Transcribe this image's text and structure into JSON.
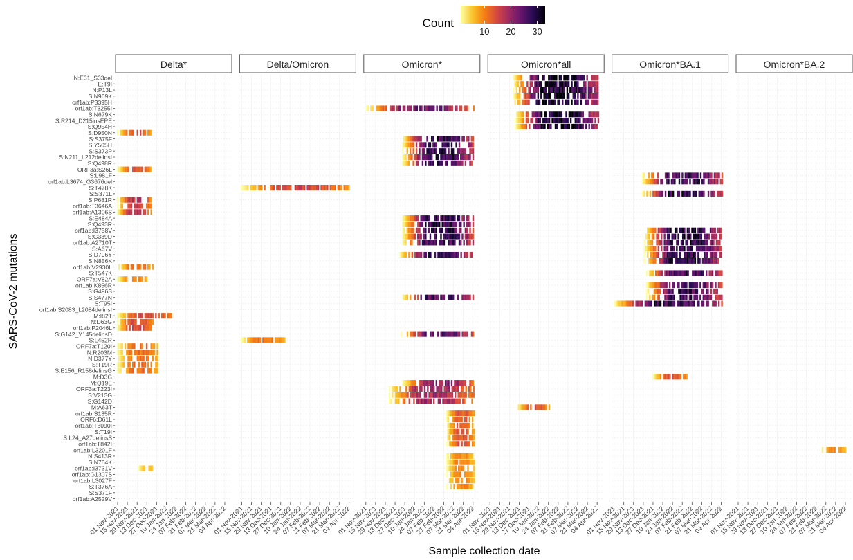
{
  "legend": {
    "title": "Count",
    "ticks": [
      10,
      20,
      30
    ],
    "range": [
      1,
      33
    ],
    "colors": [
      "#fcffa4",
      "#fac228",
      "#f57d15",
      "#d44842",
      "#9f2a63",
      "#65156e",
      "#280b53",
      "#000004"
    ]
  },
  "chart_data": {
    "type": "heatmap",
    "title": "",
    "xlabel": "Sample collection date",
    "ylabel": "SARS-CoV-2 mutations",
    "facets": [
      "Delta*",
      "Delta/Omicron",
      "Omicron*",
      "Omicron*all",
      "Omicron*BA.1",
      "Omicron*BA.2"
    ],
    "x_ticks": [
      "01 Nov-2021",
      "15 Nov-2021",
      "29 Nov-2021",
      "13 Dec-2021",
      "27 Dec-2021",
      "10 Jan-2022",
      "24 Jan-2022",
      "07 Feb-2022",
      "21 Feb-2022",
      "07 Mar-2022",
      "21 Mar-2022",
      "04 Apr-2022"
    ],
    "x_range": [
      "2021-10-31",
      "2022-04-10"
    ],
    "mutations": [
      "N:E31_S33del",
      "E:T9I",
      "N:P13L",
      "S:N969K",
      "orf1ab:P3395H",
      "orf1ab:T3255I",
      "S:N679K",
      "S:R214_D215insEPE",
      "S:Q954H",
      "S:D950N",
      "S:S375F",
      "S:Y505H",
      "S:S373P",
      "S:N211_L212delinsI",
      "S:Q498R",
      "ORF3a:S26L",
      "S:L981F",
      "orf1ab:L3674_G3676del",
      "S:T478K",
      "S:S371L",
      "S:P681R",
      "orf1ab:T3646A",
      "orf1ab:A1306S",
      "S:E484A",
      "S:Q493R",
      "orf1ab:I3758V",
      "S:G339D",
      "orf1ab:A2710T",
      "S:A67V",
      "S:D796Y",
      "S:N856K",
      "orf1ab:V2930L",
      "S:T547K",
      "ORF7a:V82A",
      "orf1ab:K856R",
      "S:G496S",
      "S:S477N",
      "S:T95I",
      "orf1ab:S2083_L2084delinsI",
      "M:I82T",
      "N:D63G",
      "orf1ab:P2046L",
      "S:G142_Y145delinsD",
      "S:L452R",
      "ORF7a:T120I",
      "N:R203M",
      "N:D377Y",
      "S:T19R",
      "S:E156_R158delinsG",
      "M:D3G",
      "M:Q19E",
      "ORF3a:T223I",
      "S:V213G",
      "S:G142D",
      "M:A63T",
      "orf1ab:S135R",
      "ORF6:D61L",
      "orf1ab:T3090I",
      "S:T19I",
      "S:L24_A27delinsS",
      "orf1ab:T842I",
      "orf1ab:L3201F",
      "N:S413R",
      "S:N764K",
      "orf1ab:I3731V",
      "orf1ab:G1307S",
      "orf1ab:L3027F",
      "S:T376A",
      "S:S371F",
      "orf1ab:A2529V"
    ],
    "series": [
      {
        "facet": "Delta*",
        "blocks": [
          {
            "rows": [
              "S:D950N",
              "ORF3a:S26L"
            ],
            "start": "2021-11-01",
            "end": "2021-12-20",
            "peak": 14
          },
          {
            "rows": [
              "S:P681R",
              "orf1ab:T3646A",
              "orf1ab:A1306S"
            ],
            "start": "2021-11-01",
            "end": "2021-12-20",
            "peak": 18
          },
          {
            "rows": [
              "orf1ab:V2930L"
            ],
            "start": "2021-11-01",
            "end": "2021-12-24",
            "peak": 12
          },
          {
            "rows": [
              "ORF7a:V82A"
            ],
            "start": "2021-11-01",
            "end": "2021-12-15",
            "peak": 10
          },
          {
            "rows": [
              "M:I82T"
            ],
            "start": "2021-11-01",
            "end": "2022-01-20",
            "peak": 16
          },
          {
            "rows": [
              "N:D63G",
              "orf1ab:P2046L"
            ],
            "start": "2021-11-01",
            "end": "2021-12-22",
            "peak": 16
          },
          {
            "rows": [
              "ORF7a:T120I",
              "N:R203M",
              "N:D377Y",
              "S:T19R",
              "S:E156_R158delinsG"
            ],
            "start": "2021-11-01",
            "end": "2021-12-30",
            "peak": 12
          },
          {
            "rows": [
              "orf1ab:I3731V"
            ],
            "start": "2021-12-01",
            "end": "2021-12-24",
            "peak": 6
          }
        ]
      },
      {
        "facet": "Delta/Omicron",
        "blocks": [
          {
            "rows": [
              "S:T478K"
            ],
            "start": "2021-11-01",
            "end": "2022-04-06",
            "peak": 16
          },
          {
            "rows": [
              "S:L452R"
            ],
            "start": "2021-11-01",
            "end": "2022-01-02",
            "peak": 12
          }
        ]
      },
      {
        "facet": "Omicron*",
        "blocks": [
          {
            "rows": [
              "orf1ab:T3255I"
            ],
            "start": "2021-11-02",
            "end": "2022-04-06",
            "peak": 24
          },
          {
            "rows": [
              "S:S375F",
              "S:Y505H",
              "S:S373P",
              "S:N211_L212delinsI",
              "S:Q498R"
            ],
            "start": "2021-12-24",
            "end": "2022-04-06",
            "peak": 30
          },
          {
            "rows": [
              "S:E484A",
              "S:Q493R",
              "orf1ab:I3758V",
              "S:G339D",
              "orf1ab:A2710T"
            ],
            "start": "2021-12-24",
            "end": "2022-04-06",
            "peak": 30
          },
          {
            "rows": [
              "S:D796Y"
            ],
            "start": "2021-12-20",
            "end": "2022-04-06",
            "peak": 28
          },
          {
            "rows": [
              "S:S477N"
            ],
            "start": "2021-12-24",
            "end": "2022-04-06",
            "peak": 28
          },
          {
            "rows": [
              "S:G142_Y145delinsD"
            ],
            "start": "2021-12-22",
            "end": "2022-04-06",
            "peak": 26
          },
          {
            "rows": [
              "M:Q19E"
            ],
            "start": "2021-12-24",
            "end": "2022-04-06",
            "peak": 22
          },
          {
            "rows": [
              "ORF3a:T223I",
              "S:V213G",
              "S:G142D"
            ],
            "start": "2021-12-05",
            "end": "2022-04-06",
            "peak": 20
          },
          {
            "rows": [
              "orf1ab:S135R",
              "ORF6:D61L",
              "orf1ab:T3090I",
              "S:T19I",
              "S:L24_A27delinsS",
              "orf1ab:T842I"
            ],
            "start": "2022-02-25",
            "end": "2022-04-06",
            "peak": 14
          },
          {
            "rows": [
              "N:S413R",
              "S:N764K",
              "orf1ab:I3731V",
              "orf1ab:G1307S",
              "orf1ab:L3027F",
              "S:T376A"
            ],
            "start": "2022-02-25",
            "end": "2022-04-06",
            "peak": 10
          }
        ]
      },
      {
        "facet": "Omicron*all",
        "blocks": [
          {
            "rows": [
              "N:E31_S33del",
              "E:T9I",
              "N:P13L",
              "S:N969K",
              "orf1ab:P3395H"
            ],
            "start": "2021-12-05",
            "end": "2022-04-06",
            "peak": 33
          },
          {
            "rows": [
              "S:N679K",
              "S:R214_D215insEPE",
              "S:Q954H"
            ],
            "start": "2021-12-08",
            "end": "2022-04-06",
            "peak": 33
          },
          {
            "rows": [
              "M:A63T"
            ],
            "start": "2021-12-10",
            "end": "2022-01-28",
            "peak": 14
          }
        ]
      },
      {
        "facet": "Omicron*BA.1",
        "blocks": [
          {
            "rows": [
              "S:L981F",
              "orf1ab:L3674_G3676del",
              "S:S371L"
            ],
            "start": "2021-12-12",
            "end": "2022-04-06",
            "peak": 30
          },
          {
            "rows": [
              "orf1ab:I3758V",
              "S:G339D",
              "orf1ab:A2710T",
              "S:A67V",
              "S:D796Y",
              "S:N856K"
            ],
            "start": "2021-12-15",
            "end": "2022-04-06",
            "peak": 31
          },
          {
            "rows": [
              "S:T547K",
              "orf1ab:K856R",
              "S:G496S",
              "S:S477N"
            ],
            "start": "2021-12-18",
            "end": "2022-04-06",
            "peak": 29
          },
          {
            "rows": [
              "S:T95I"
            ],
            "start": "2021-11-02",
            "end": "2022-04-06",
            "peak": 30
          },
          {
            "rows": [
              "M:D3G"
            ],
            "start": "2021-12-27",
            "end": "2022-02-15",
            "peak": 14
          }
        ]
      },
      {
        "facet": "Omicron*BA.2",
        "blocks": [
          {
            "rows": [
              "orf1ab:L3201F"
            ],
            "start": "2022-02-28",
            "end": "2022-04-06",
            "peak": 10
          }
        ]
      }
    ]
  }
}
